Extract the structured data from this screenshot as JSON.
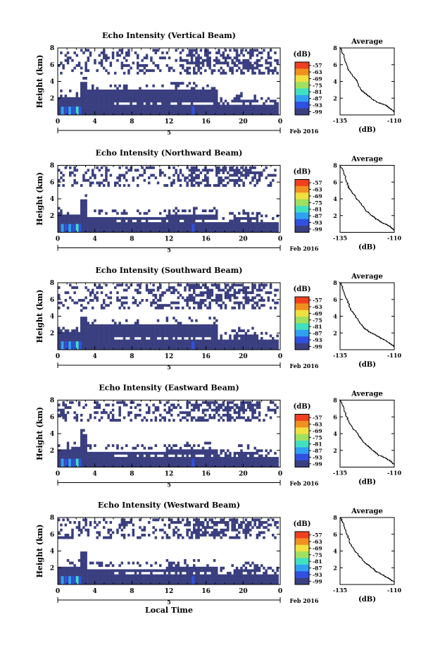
{
  "chart_data": [
    {
      "type": "heatmap",
      "title": "Echo Intensity (Vertical Beam)",
      "ylabel": "Height (km)",
      "xlabel": "",
      "xlim": [
        0,
        24
      ],
      "ylim": [
        0,
        8
      ],
      "xticks": [
        "0",
        "4",
        "8",
        "12",
        "16",
        "20",
        "0"
      ],
      "yticks": [
        "2",
        "4",
        "6",
        "8"
      ],
      "date_tick": "5",
      "date_label": "Feb 2016",
      "colorbar": {
        "unit": "(dB)",
        "ticks": [
          "-57",
          "-63",
          "-69",
          "-75",
          "-81",
          "-87",
          "-93",
          "-99"
        ],
        "colors": [
          "#f04020",
          "#f09020",
          "#f0e040",
          "#a0e060",
          "#40e0c0",
          "#30a0f0",
          "#3050e0",
          "#3a3f80"
        ]
      },
      "layer_top_km": 3.0,
      "top_layer_km": [
        5.0,
        8.0
      ],
      "average": {
        "title": "Average",
        "xlabel": "(dB)",
        "xticks": [
          "-135",
          "-110"
        ],
        "yticks": [
          "2",
          "4",
          "6",
          "8"
        ],
        "x": [
          -110,
          -113,
          -118,
          -121,
          -124,
          -126,
          -127,
          -129,
          -131,
          -132,
          -133,
          -134,
          -135
        ],
        "y": [
          0.3,
          1.0,
          1.5,
          2.0,
          2.6,
          3.2,
          4.0,
          4.6,
          5.3,
          6.0,
          6.8,
          7.5,
          8.0
        ]
      }
    },
    {
      "type": "heatmap",
      "title": "Echo Intensity (Northward Beam)",
      "ylabel": "Height (km)",
      "xlabel": "",
      "xlim": [
        0,
        24
      ],
      "ylim": [
        0,
        8
      ],
      "xticks": [
        "0",
        "4",
        "8",
        "12",
        "16",
        "20",
        "0"
      ],
      "yticks": [
        "2",
        "4",
        "6",
        "8"
      ],
      "date_tick": "5",
      "date_label": "Feb 2016",
      "colorbar": {
        "unit": "(dB)",
        "ticks": [
          "-57",
          "-63",
          "-69",
          "-75",
          "-81",
          "-87",
          "-93",
          "-99"
        ],
        "colors": [
          "#f04020",
          "#f09020",
          "#f0e040",
          "#a0e060",
          "#40e0c0",
          "#30a0f0",
          "#3050e0",
          "#3a3f80"
        ]
      },
      "layer_top_km": 2.0,
      "top_layer_km": [
        5.5,
        8.0
      ],
      "average": {
        "title": "Average",
        "xlabel": "(dB)",
        "xticks": [
          "-135",
          "-110"
        ],
        "yticks": [
          "2",
          "4",
          "6",
          "8"
        ],
        "x": [
          -110,
          -113,
          -117,
          -120,
          -123,
          -125,
          -127,
          -129,
          -131,
          -132,
          -133,
          -134,
          -135
        ],
        "y": [
          0.2,
          0.8,
          1.3,
          1.9,
          2.5,
          3.2,
          3.9,
          4.6,
          5.3,
          6.0,
          6.8,
          7.5,
          8.0
        ]
      }
    },
    {
      "type": "heatmap",
      "title": "Echo Intensity (Southward Beam)",
      "ylabel": "Height (km)",
      "xlabel": "",
      "xlim": [
        0,
        24
      ],
      "ylim": [
        0,
        8
      ],
      "xticks": [
        "0",
        "4",
        "8",
        "12",
        "16",
        "20",
        "0"
      ],
      "yticks": [
        "2",
        "4",
        "6",
        "8"
      ],
      "date_tick": "5",
      "date_label": "Feb 2016",
      "colorbar": {
        "unit": "(dB)",
        "ticks": [
          "-57",
          "-63",
          "-69",
          "-75",
          "-81",
          "-87",
          "-93",
          "-99"
        ],
        "colors": [
          "#f04020",
          "#f09020",
          "#f0e040",
          "#a0e060",
          "#40e0c0",
          "#30a0f0",
          "#3050e0",
          "#3a3f80"
        ]
      },
      "layer_top_km": 3.0,
      "top_layer_km": [
        5.0,
        8.0
      ],
      "average": {
        "title": "Average",
        "xlabel": "(dB)",
        "xticks": [
          "-135",
          "-110"
        ],
        "yticks": [
          "2",
          "4",
          "6",
          "8"
        ],
        "x": [
          -110,
          -113,
          -117,
          -121,
          -124,
          -126,
          -128,
          -130,
          -131,
          -132,
          -133,
          -134,
          -135
        ],
        "y": [
          0.3,
          0.9,
          1.5,
          2.0,
          2.6,
          3.3,
          4.0,
          4.7,
          5.4,
          6.1,
          6.8,
          7.5,
          8.0
        ]
      }
    },
    {
      "type": "heatmap",
      "title": "Echo Intensity (Eastward Beam)",
      "ylabel": "Height (km)",
      "xlabel": "",
      "xlim": [
        0,
        24
      ],
      "ylim": [
        0,
        8
      ],
      "xticks": [
        "0",
        "4",
        "8",
        "12",
        "16",
        "20",
        "0"
      ],
      "yticks": [
        "2",
        "4",
        "6",
        "8"
      ],
      "date_tick": "5",
      "date_label": "Feb 2016",
      "colorbar": {
        "unit": "(dB)",
        "ticks": [
          "-57",
          "-63",
          "-69",
          "-75",
          "-81",
          "-87",
          "-93",
          "-99"
        ],
        "colors": [
          "#f04020",
          "#f09020",
          "#f0e040",
          "#a0e060",
          "#40e0c0",
          "#30a0f0",
          "#3050e0",
          "#3a3f80"
        ]
      },
      "layer_top_km": 2.0,
      "top_layer_km": [
        5.5,
        8.0
      ],
      "average": {
        "title": "Average",
        "xlabel": "(dB)",
        "xticks": [
          "-135",
          "-110"
        ],
        "yticks": [
          "2",
          "4",
          "6",
          "8"
        ],
        "x": [
          -110,
          -113,
          -117,
          -120,
          -123,
          -125,
          -127,
          -129,
          -131,
          -132,
          -133,
          -134,
          -135
        ],
        "y": [
          0.3,
          0.9,
          1.4,
          2.0,
          2.6,
          3.3,
          4.0,
          4.6,
          5.3,
          6.0,
          6.8,
          7.5,
          8.0
        ]
      }
    },
    {
      "type": "heatmap",
      "title": "Echo Intensity (Westward Beam)",
      "ylabel": "Height (km)",
      "xlabel": "Local Time",
      "xlim": [
        0,
        24
      ],
      "ylim": [
        0,
        8
      ],
      "xticks": [
        "0",
        "4",
        "8",
        "12",
        "16",
        "20",
        "0"
      ],
      "yticks": [
        "2",
        "4",
        "6",
        "8"
      ],
      "date_tick": "5",
      "date_label": "Feb 2016",
      "colorbar": {
        "unit": "(dB)",
        "ticks": [
          "-57",
          "-63",
          "-69",
          "-75",
          "-81",
          "-87",
          "-93",
          "-99"
        ],
        "colors": [
          "#f04020",
          "#f09020",
          "#f0e040",
          "#a0e060",
          "#40e0c0",
          "#30a0f0",
          "#3050e0",
          "#3a3f80"
        ]
      },
      "layer_top_km": 2.0,
      "top_layer_km": [
        5.5,
        8.0
      ],
      "average": {
        "title": "Average",
        "xlabel": "(dB)",
        "xticks": [
          "-135",
          "-110"
        ],
        "yticks": [
          "2",
          "4",
          "6",
          "8"
        ],
        "x": [
          -110,
          -114,
          -118,
          -121,
          -124,
          -126,
          -128,
          -130,
          -131,
          -132,
          -133,
          -134,
          -135
        ],
        "y": [
          0.3,
          0.9,
          1.5,
          2.1,
          2.7,
          3.3,
          4.0,
          4.7,
          5.4,
          6.1,
          6.8,
          7.5,
          8.0
        ]
      }
    }
  ]
}
